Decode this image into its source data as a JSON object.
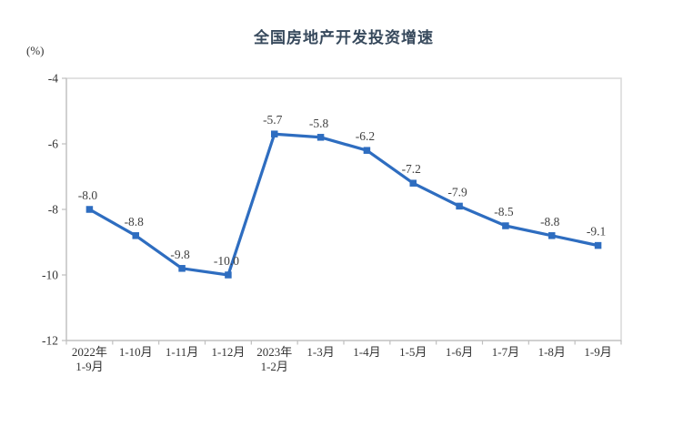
{
  "chart_data": {
    "type": "line",
    "title": "全国房地产开发投资增速",
    "unit_label": "(%)",
    "categories": [
      [
        "2022年",
        "1-9月"
      ],
      [
        "1-10月"
      ],
      [
        "1-11月"
      ],
      [
        "1-12月"
      ],
      [
        "2023年",
        "1-2月"
      ],
      [
        "1-3月"
      ],
      [
        "1-4月"
      ],
      [
        "1-5月"
      ],
      [
        "1-6月"
      ],
      [
        "1-7月"
      ],
      [
        "1-8月"
      ],
      [
        "1-9月"
      ]
    ],
    "values": [
      -8.0,
      -8.8,
      -9.8,
      -10.0,
      -5.7,
      -5.8,
      -6.2,
      -7.2,
      -7.9,
      -8.5,
      -8.8,
      -9.1
    ],
    "point_labels": [
      "-8.0",
      "-8.8",
      "-9.8",
      "-10.0",
      "-5.7",
      "-5.8",
      "-6.2",
      "-7.2",
      "-7.9",
      "-8.5",
      "-8.8",
      "-9.1"
    ],
    "yticks": [
      "-4",
      "-6",
      "-8",
      "-10",
      "-12"
    ],
    "ylim": [
      -12,
      -4
    ],
    "grid": false,
    "legend": "none",
    "colors": {
      "line": "#2e6dc0",
      "marker": "#2e6dc0",
      "plot_border": "#d9d9d9",
      "axis": "#bfbfbf",
      "tick_text": "#333333",
      "point_label_text": "#404040",
      "title_text": "#37495c"
    }
  }
}
